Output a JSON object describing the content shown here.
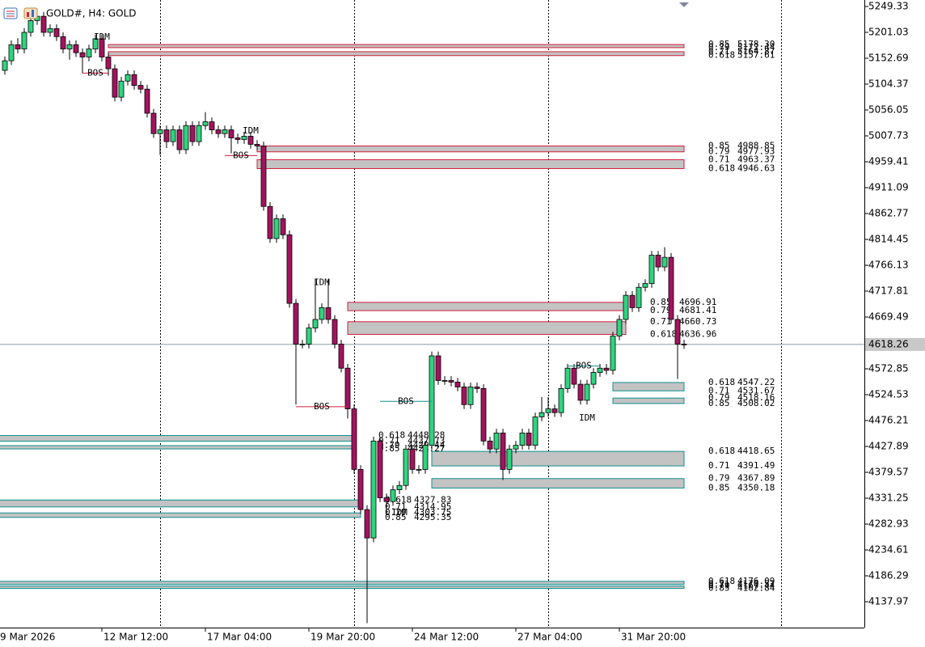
{
  "chart_data": {
    "type": "candlestick",
    "title": "GOLD#, H4:  GOLD",
    "up_color": "#2fd47f",
    "down_color": "#a3135e",
    "bearish_color": "#d21f3c",
    "bullish_color": "#138f8f",
    "idm_color": "#b8a078",
    "xlim": [
      -0.75,
      132.875
    ],
    "xticks": [
      {
        "value": -1,
        "label": "9 Mar 2026"
      },
      {
        "value": 15,
        "label": "12 Mar 12:00"
      },
      {
        "value": 31,
        "label": "17 Mar 04:00"
      },
      {
        "value": 47,
        "label": "19 Mar 20:00"
      },
      {
        "value": 63,
        "label": "24 Mar 12:00"
      },
      {
        "value": 79,
        "label": "27 Mar 04:00"
      },
      {
        "value": 95,
        "label": "31 Mar 20:00"
      }
    ],
    "ylim": [
      4089.65,
      5261.41
    ],
    "yticks": [
      5249.33,
      5201.03,
      5152.69,
      5104.37,
      5056.05,
      5007.73,
      4959.41,
      4911.09,
      4862.77,
      4814.45,
      4766.13,
      4717.81,
      4669.49,
      4572.85,
      4524.53,
      4476.21,
      4427.89,
      4379.57,
      4331.25,
      4282.93,
      4234.61,
      4186.29,
      4137.97
    ],
    "current_price": 4618.26,
    "open": [
      5130,
      5148,
      5178,
      5170,
      5201,
      5223,
      5231,
      5201,
      5208,
      5193,
      5170,
      5178,
      5163,
      5155,
      5170,
      5189,
      5155,
      5133,
      5080,
      5110,
      5122,
      5102,
      5095,
      5050,
      5012,
      5019,
      4997,
      5019,
      4982,
      5027,
      4997,
      5027,
      5034,
      5019,
      5012,
      5019,
      5004,
      5001,
      5007,
      4992,
      4989,
      4876,
      4816,
      4853,
      4823,
      4695,
      4619,
      4619,
      4649,
      4665,
      4687,
      4665,
      4619,
      4574,
      4498,
      4385,
      4310,
      4257,
      4438,
      4332,
      4325,
      4347,
      4355,
      4423,
      4385,
      4385,
      4430,
      4597,
      4551,
      4551,
      4548,
      4539,
      4506,
      4539,
      4536,
      4438,
      4423,
      4453,
      4385,
      4423,
      4430,
      4453,
      4430,
      4483,
      4491,
      4498,
      4491,
      4536,
      4574,
      4544,
      4514,
      4544,
      4566,
      4574,
      4570,
      4634,
      4665,
      4710,
      4687,
      4725,
      4732,
      4785,
      4763,
      4781,
      4665,
      4619
    ],
    "high": [
      5156,
      5186,
      5190,
      5209,
      5240,
      5245,
      5239,
      5216,
      5216,
      5201,
      5186,
      5186,
      5171,
      5178,
      5197,
      5197,
      5163,
      5141,
      5118,
      5130,
      5130,
      5110,
      5103,
      5058,
      5027,
      5027,
      5027,
      5027,
      5035,
      5035,
      5035,
      5052,
      5042,
      5027,
      5027,
      5027,
      5012,
      5015,
      5015,
      5000,
      4997,
      4884,
      4861,
      4861,
      4831,
      4703,
      4627,
      4657,
      4740,
      4695,
      4740,
      4673,
      4627,
      4582,
      4506,
      4393,
      4318,
      4446,
      4446,
      4340,
      4355,
      4363,
      4431,
      4431,
      4393,
      4438,
      4605,
      4605,
      4559,
      4559,
      4556,
      4547,
      4547,
      4547,
      4544,
      4446,
      4461,
      4461,
      4431,
      4438,
      4461,
      4461,
      4491,
      4520,
      4520,
      4506,
      4544,
      4582,
      4582,
      4552,
      4552,
      4574,
      4582,
      4582,
      4642,
      4673,
      4718,
      4718,
      4733,
      4740,
      4793,
      4793,
      4800,
      4789,
      4673,
      4627
    ],
    "low": [
      5122,
      5140,
      5162,
      5162,
      5193,
      5215,
      5193,
      5193,
      5185,
      5162,
      5150,
      5155,
      5125,
      5147,
      5162,
      5147,
      5120,
      5072,
      5072,
      5102,
      5094,
      5087,
      5042,
      5004,
      4972,
      4985,
      4989,
      4974,
      4974,
      4989,
      4989,
      5019,
      5011,
      5004,
      5004,
      4975,
      4993,
      4993,
      4984,
      4981,
      4868,
      4808,
      4808,
      4815,
      4687,
      4506,
      4611,
      4611,
      4641,
      4657,
      4657,
      4611,
      4566,
      4480,
      4377,
      4302,
      4098,
      4249,
      4324,
      4300,
      4317,
      4339,
      4347,
      4377,
      4377,
      4377,
      4422,
      4543,
      4543,
      4540,
      4531,
      4498,
      4498,
      4528,
      4430,
      4415,
      4415,
      4365,
      4377,
      4415,
      4422,
      4422,
      4422,
      4475,
      4483,
      4483,
      4483,
      4528,
      4536,
      4506,
      4506,
      4536,
      4558,
      4562,
      4562,
      4626,
      4657,
      4679,
      4679,
      4717,
      4724,
      4755,
      4755,
      4657,
      4554,
      4610
    ],
    "close": [
      5148,
      5178,
      5170,
      5201,
      5223,
      5231,
      5201,
      5208,
      5193,
      5170,
      5178,
      5163,
      5155,
      5170,
      5189,
      5155,
      5133,
      5080,
      5110,
      5122,
      5102,
      5095,
      5050,
      5012,
      5019,
      4997,
      5019,
      4982,
      5027,
      4997,
      5027,
      5034,
      5019,
      5012,
      5019,
      5004,
      5001,
      5007,
      4992,
      4989,
      4876,
      4816,
      4853,
      4823,
      4695,
      4619,
      4619,
      4649,
      4665,
      4687,
      4665,
      4619,
      4574,
      4498,
      4385,
      4310,
      4257,
      4438,
      4332,
      4325,
      4347,
      4355,
      4423,
      4385,
      4385,
      4430,
      4597,
      4551,
      4551,
      4548,
      4539,
      4506,
      4539,
      4536,
      4438,
      4423,
      4453,
      4385,
      4423,
      4430,
      4453,
      4430,
      4483,
      4491,
      4498,
      4491,
      4536,
      4574,
      4544,
      4514,
      4544,
      4566,
      4574,
      4570,
      4634,
      4665,
      4710,
      4687,
      4725,
      4732,
      4785,
      4763,
      4781,
      4665,
      4619,
      4618
    ],
    "zones": [
      {
        "kind": "bearish",
        "start": 16,
        "end": 105,
        "levels": [
          {
            "fib": 0.85,
            "price": {
              "value": 5178.3,
              "label": "5178.30"
            }
          },
          {
            "fib": 0.79,
            "price": 5172.44
          },
          {
            "fib": 0.71,
            "price": 5164.87
          },
          {
            "fib": 0.618,
            "price": 5157.61
          }
        ]
      },
      {
        "kind": "bearish",
        "start": 39,
        "end": 105,
        "levels": [
          {
            "fib": 0.85,
            "price": 4988.85
          },
          {
            "fib": 0.79,
            "price": 4977.93
          },
          {
            "fib": 0.71,
            "price": 4963.37
          },
          {
            "fib": 0.618,
            "price": 4946.63
          }
        ]
      },
      {
        "kind": "bearish",
        "start": 53,
        "end": 96,
        "levels": [
          {
            "fib": 0.85,
            "price": 4696.91
          },
          {
            "fib": 0.79,
            "price": 4681.41
          },
          {
            "fib": 0.71,
            "price": 4660.73
          },
          {
            "fib": 0.618,
            "price": 4636.96
          }
        ]
      },
      {
        "kind": "bullish",
        "start": 94,
        "end": 105,
        "levels": [
          {
            "fib": 0.618,
            "price": 4547.22
          },
          {
            "fib": 0.71,
            "price": 4531.67
          },
          {
            "fib": 0.79,
            "price": 4518.16
          },
          {
            "fib": 0.85,
            "price": 4508.02
          }
        ]
      },
      {
        "kind": "bullish",
        "start": 66,
        "end": 105,
        "levels": [
          {
            "fib": 0.618,
            "price": 4418.65
          },
          {
            "fib": 0.71,
            "price": 4391.49
          },
          {
            "fib": 0.79,
            "price": 4367.89
          },
          {
            "fib": 0.85,
            "price": 4350.18
          }
        ]
      },
      {
        "kind": "bullish",
        "start": -1,
        "end": 54,
        "levels": [
          {
            "fib": 0.618,
            "price": 4448.28
          },
          {
            "fib": 0.71,
            "price": 4437.73
          },
          {
            "fib": 0.79,
            "price": 4429.44
          },
          {
            "fib": 0.85,
            "price": 4423.27
          }
        ]
      },
      {
        "kind": "bullish",
        "start": -1,
        "end": 55,
        "levels": [
          {
            "fib": 0.618,
            "price": 4327.83
          },
          {
            "fib": 0.71,
            "price": 4314.95
          },
          {
            "fib": 0.79,
            "price": 4303.75
          },
          {
            "fib": 0.85,
            "price": 4295.35
          }
        ]
      },
      {
        "kind": "bullish",
        "start": -1,
        "end": 105,
        "levels": [
          {
            "fib": 0.618,
            "price": 4176.09
          },
          {
            "fib": 0.71,
            "price": 4170.52
          },
          {
            "fib": 0.79,
            "price": 4167.44
          },
          {
            "fib": 0.85,
            "price": 4162.84
          }
        ]
      }
    ],
    "bos": [
      {
        "label": "BOS",
        "kind": "bearish",
        "price": 5125,
        "start": 12,
        "end": 16
      },
      {
        "label": "BOS",
        "kind": "bearish",
        "price": 4971,
        "start": 34,
        "end": 39
      },
      {
        "label": "BOS",
        "kind": "bearish",
        "price": 4502,
        "start": 45,
        "end": 53
      },
      {
        "label": "BOS",
        "kind": "bullish",
        "price": 4512,
        "start": 58,
        "end": 66
      },
      {
        "label": "BOS",
        "kind": "bullish",
        "price": 4578,
        "start": 87,
        "end": 92
      }
    ],
    "idm": [
      {
        "label": "IDM",
        "price": 5192,
        "index": 15
      },
      {
        "label": "IDM",
        "price": 5017,
        "index": 38
      },
      {
        "label": "IDM",
        "price": 4734,
        "index": 49
      },
      {
        "label": "IDM",
        "price": 4304,
        "index": 61
      },
      {
        "label": "IDM",
        "price": 4481,
        "index": 90
      }
    ]
  }
}
